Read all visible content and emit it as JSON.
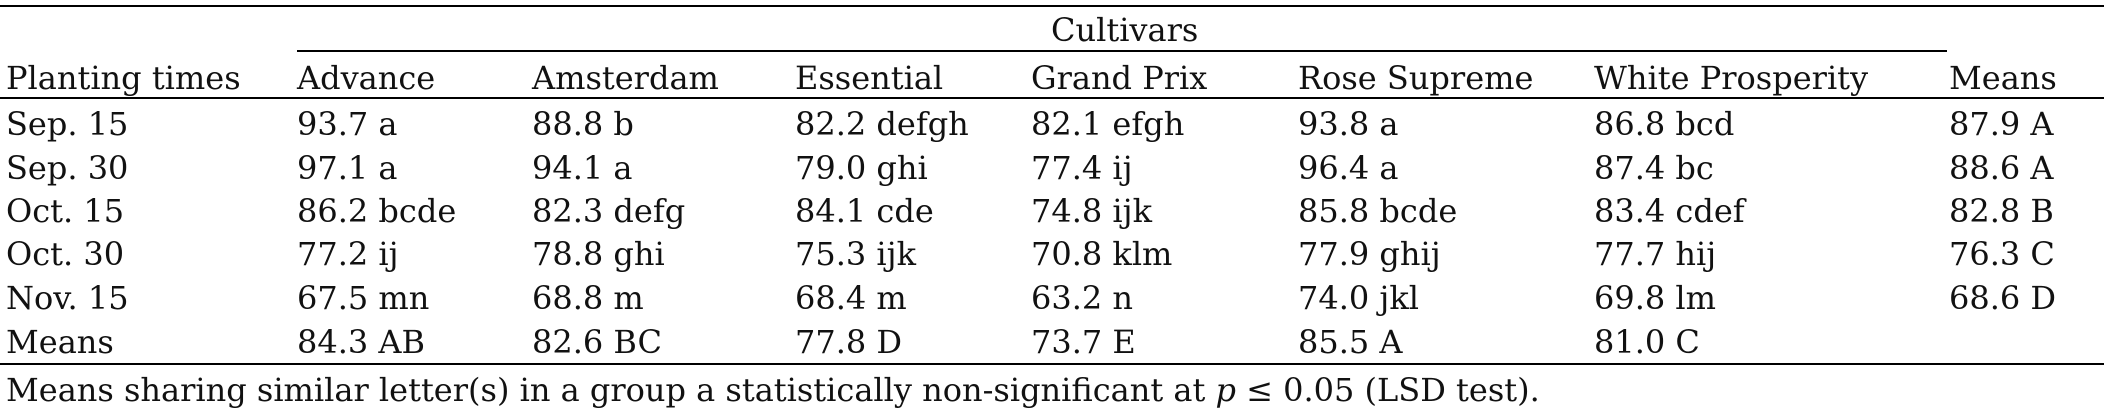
{
  "table": {
    "group_header": "Cultivars",
    "columns": [
      "Planting times",
      "Advance",
      "Amsterdam",
      "Essential",
      "Grand Prix",
      "Rose Supreme",
      "White Prosperity",
      "Means"
    ],
    "rows": [
      [
        "Sep. 15",
        "93.7 a",
        "88.8 b",
        "82.2 defgh",
        "82.1 efgh",
        "93.8 a",
        "86.8 bcd",
        "87.9 A"
      ],
      [
        "Sep. 30",
        "97.1 a",
        "94.1 a",
        "79.0 ghi",
        "77.4 ij",
        "96.4 a",
        "87.4 bc",
        "88.6 A"
      ],
      [
        "Oct. 15",
        "86.2 bcde",
        "82.3 defg",
        "84.1 cde",
        "74.8 ijk",
        "85.8 bcde",
        "83.4 cdef",
        "82.8 B"
      ],
      [
        "Oct. 30",
        "77.2 ij",
        "78.8 ghi",
        "75.3 ijk",
        "70.8 klm",
        "77.9 ghij",
        "77.7 hij",
        "76.3 C"
      ],
      [
        "Nov. 15",
        "67.5 mn",
        "68.8 m",
        "68.4 m",
        "63.2 n",
        "74.0 jkl",
        "69.8 lm",
        "68.6 D"
      ],
      [
        "Means",
        "84.3 AB",
        "82.6 BC",
        "77.8 D",
        "73.7 E",
        "85.5 A",
        "81.0 C",
        ""
      ]
    ],
    "footnote": {
      "before": "Means sharing similar letter(s) in a group a statistically non-significant at ",
      "italic": "p",
      "after": " ≤ 0.05 (LSD test)."
    }
  }
}
